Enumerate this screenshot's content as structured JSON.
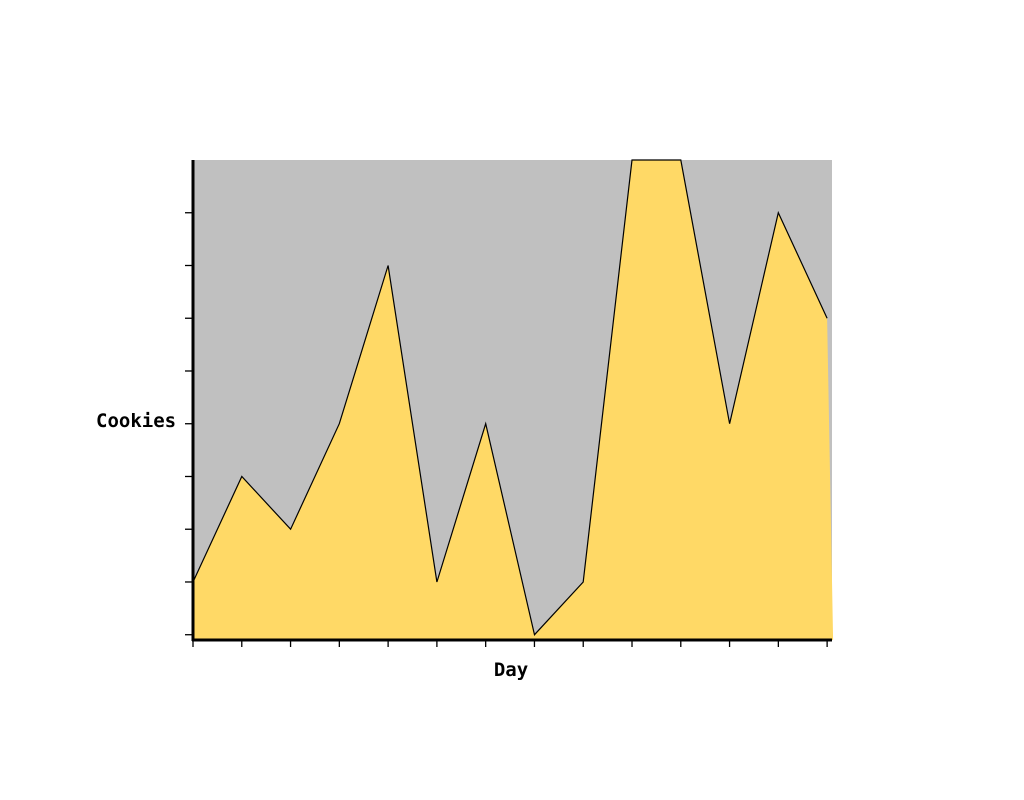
{
  "chart_data": {
    "type": "area",
    "title": "",
    "xlabel": "Day",
    "ylabel": "Cookies",
    "x": [
      1,
      2,
      3,
      4,
      5,
      6,
      7,
      8,
      9,
      10,
      11,
      12,
      13,
      14
    ],
    "series": [
      {
        "values": [
          1,
          3,
          2,
          4,
          7,
          1,
          4,
          0,
          1,
          9,
          9,
          4,
          8,
          6
        ]
      }
    ],
    "xlim": [
      1,
      14.1
    ],
    "ylim": [
      -0.1,
      9
    ],
    "y_ticks": [
      0,
      1,
      2,
      3,
      4,
      5,
      6,
      7,
      8
    ],
    "grid": false,
    "legend": "none",
    "colors": {
      "plot_background": "#c0c0c0",
      "area_fill": "#ffd966",
      "area_line": "#000000",
      "axis": "#000000"
    }
  }
}
